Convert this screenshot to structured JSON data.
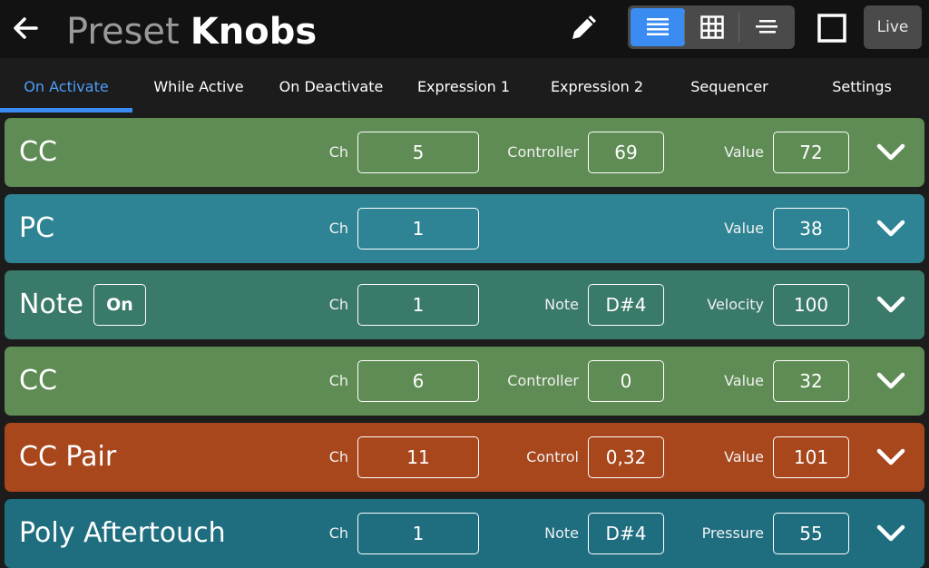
{
  "header": {
    "title_prefix": "Preset",
    "title_name": "Knobs",
    "live_label": "Live"
  },
  "tabs": [
    {
      "label": "On Activate",
      "active": true
    },
    {
      "label": "While Active"
    },
    {
      "label": "On Deactivate"
    },
    {
      "label": "Expression 1"
    },
    {
      "label": "Expression 2"
    },
    {
      "label": "Sequencer"
    },
    {
      "label": "Settings"
    }
  ],
  "rows": [
    {
      "type": "CC",
      "color": "#5e8c54",
      "ch_label": "Ch",
      "ch": "5",
      "f2_label": "Controller",
      "f2": "69",
      "f3_label": "Value",
      "f3": "72"
    },
    {
      "type": "PC",
      "color": "#2e8494",
      "ch_label": "Ch",
      "ch": "1",
      "f3_label": "Value",
      "f3": "38"
    },
    {
      "type": "Note",
      "color": "#3a7a6a",
      "on_label": "On",
      "ch_label": "Ch",
      "ch": "1",
      "f2_label": "Note",
      "f2": "D#4",
      "f3_label": "Velocity",
      "f3": "100"
    },
    {
      "type": "CC",
      "color": "#5e8c54",
      "ch_label": "Ch",
      "ch": "6",
      "f2_label": "Controller",
      "f2": "0",
      "f3_label": "Value",
      "f3": "32"
    },
    {
      "type": "CC Pair",
      "color": "#a8461c",
      "ch_label": "Ch",
      "ch": "11",
      "f2_label": "Control",
      "f2": "0,32",
      "f3_label": "Value",
      "f3": "101"
    },
    {
      "type": "Poly Aftertouch",
      "color": "#1f6e80",
      "ch_label": "Ch",
      "ch": "1",
      "f2_label": "Note",
      "f2": "D#4",
      "f3_label": "Pressure",
      "f3": "55"
    }
  ],
  "icons": {
    "back": "arrow-left-icon",
    "edit": "pencil-icon",
    "list_view": "list-view-icon",
    "grid_view": "grid-view-icon",
    "compact_view": "compact-list-icon",
    "square": "square-icon",
    "expand": "chevron-down-icon"
  },
  "colors": {
    "accent": "#3b8cf2",
    "header_bg": "#121212",
    "cc": "#5e8c54",
    "pc": "#2e8494",
    "note": "#3a7a6a",
    "cc_pair": "#a8461c",
    "poly_aftertouch": "#1f6e80"
  }
}
